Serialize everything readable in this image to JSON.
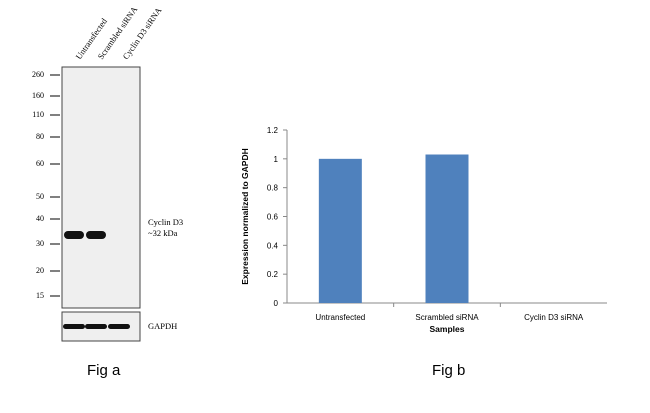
{
  "fig_a": {
    "label": "Fig a",
    "lanes": [
      "Untransfected",
      "Scrambled siRNA",
      "Cyclin D3 siRNA"
    ],
    "markers": [
      "260",
      "160",
      "110",
      "80",
      "60",
      "50",
      "40",
      "30",
      "20",
      "15"
    ],
    "target_label": "Cyclin D3",
    "target_size": "~32 kDa",
    "target_band_lanes": [
      true,
      true,
      false
    ],
    "loading_label": "GAPDH",
    "loading_band_lanes": [
      true,
      true,
      true
    ]
  },
  "fig_b": {
    "label": "Fig b"
  },
  "chart_data": {
    "type": "bar",
    "categories": [
      "Untransfected",
      "Scrambled siRNA",
      "Cyclin D3 siRNA"
    ],
    "values": [
      1.0,
      1.03,
      0.0
    ],
    "title": "",
    "xlabel": "Samples",
    "ylabel": "Expression normalized to GAPDH",
    "ylim": [
      0,
      1.2
    ],
    "yticks": [
      "0",
      "0.2",
      "0.4",
      "0.6",
      "0.8",
      "1",
      "1.2"
    ],
    "bar_color": "#4F81BD",
    "grid": false,
    "legend": "none"
  }
}
